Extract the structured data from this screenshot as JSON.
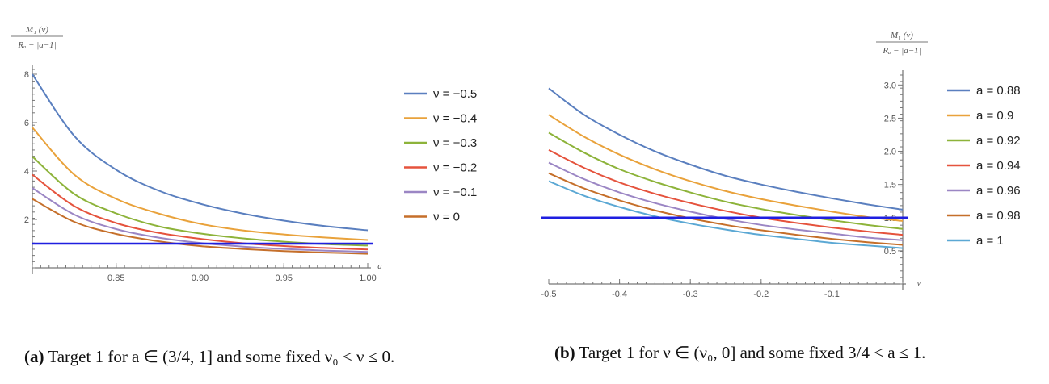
{
  "captions": {
    "a_label": "(a)",
    "a_text": " Target 1 for a ∈ (3/4, 1] and some fixed ν₀ < ν ≤ 0.",
    "b_label": "(b)",
    "b_text": " Target 1 for ν ∈ (ν₀, 0] and some fixed 3/4 < a ≤ 1."
  },
  "chart_data": [
    {
      "type": "line",
      "ylabel_num": "M₁ (ν)",
      "ylabel_den": "Rₐ − |a−1|",
      "xlabel": "a",
      "xlim": [
        0.8,
        1.0
      ],
      "ylim": [
        0,
        8.2
      ],
      "xticks": [
        0.85,
        0.9,
        0.95,
        1.0
      ],
      "xticklabels": [
        "0.85",
        "0.90",
        "0.95",
        "1.00"
      ],
      "yticks": [
        2,
        4,
        6,
        8
      ],
      "yticklabels": [
        "2",
        "4",
        "6",
        "8"
      ],
      "grid": false,
      "legend_placement": "right",
      "x": [
        0.8,
        0.825,
        0.85,
        0.875,
        0.9,
        0.925,
        0.95,
        0.975,
        1.0
      ],
      "series": [
        {
          "name": "ν = −0.5",
          "color": "#5a7fbf",
          "values": [
            8.0,
            5.45,
            4.05,
            3.2,
            2.65,
            2.25,
            1.95,
            1.72,
            1.55
          ]
        },
        {
          "name": "ν = −0.4",
          "color": "#e9a23b",
          "values": [
            5.8,
            3.85,
            2.85,
            2.25,
            1.82,
            1.55,
            1.38,
            1.25,
            1.15
          ]
        },
        {
          "name": "ν = −0.3",
          "color": "#8db33a",
          "values": [
            4.6,
            3.05,
            2.25,
            1.72,
            1.42,
            1.22,
            1.08,
            0.98,
            0.92
          ]
        },
        {
          "name": "ν = −0.2",
          "color": "#e5533d",
          "values": [
            3.85,
            2.55,
            1.85,
            1.45,
            1.2,
            1.02,
            0.9,
            0.82,
            0.76
          ]
        },
        {
          "name": "ν = −0.1",
          "color": "#9b86c4",
          "values": [
            3.3,
            2.2,
            1.6,
            1.25,
            1.03,
            0.88,
            0.78,
            0.71,
            0.66
          ]
        },
        {
          "name": "ν = 0",
          "color": "#c56f2a",
          "values": [
            2.85,
            1.9,
            1.4,
            1.1,
            0.9,
            0.78,
            0.69,
            0.63,
            0.58
          ]
        }
      ],
      "reference_line": {
        "y": 1.0,
        "color": "#1f1fe0"
      }
    },
    {
      "type": "line",
      "ylabel_num": "M₁ (ν)",
      "ylabel_den": "Rₐ − |a−1|",
      "xlabel": "ν",
      "xlim": [
        -0.5,
        0.0
      ],
      "ylim": [
        0.0,
        3.15
      ],
      "xticks": [
        -0.5,
        -0.4,
        -0.3,
        -0.2,
        -0.1
      ],
      "xticklabels": [
        "-0.5",
        "-0.4",
        "-0.3",
        "-0.2",
        "-0.1"
      ],
      "yticks": [
        0.5,
        1.0,
        1.5,
        2.0,
        2.5,
        3.0
      ],
      "yticklabels": [
        "0.5",
        "1.0",
        "1.5",
        "2.0",
        "2.5",
        "3.0"
      ],
      "grid": false,
      "legend_placement": "right",
      "x": [
        -0.5,
        -0.45,
        -0.4,
        -0.35,
        -0.3,
        -0.25,
        -0.2,
        -0.15,
        -0.1,
        -0.05,
        0.0
      ],
      "series": [
        {
          "name": "a = 0.88",
          "color": "#5a7fbf",
          "values": [
            2.95,
            2.55,
            2.25,
            2.0,
            1.8,
            1.63,
            1.5,
            1.39,
            1.29,
            1.2,
            1.12
          ]
        },
        {
          "name": "a = 0.9",
          "color": "#e9a23b",
          "values": [
            2.55,
            2.22,
            1.95,
            1.73,
            1.55,
            1.4,
            1.28,
            1.18,
            1.09,
            1.01,
            0.95
          ]
        },
        {
          "name": "a = 0.92",
          "color": "#8db33a",
          "values": [
            2.28,
            1.98,
            1.73,
            1.54,
            1.38,
            1.24,
            1.13,
            1.04,
            0.96,
            0.89,
            0.83
          ]
        },
        {
          "name": "a = 0.94",
          "color": "#e5533d",
          "values": [
            2.02,
            1.75,
            1.53,
            1.36,
            1.22,
            1.1,
            1.0,
            0.92,
            0.85,
            0.79,
            0.74
          ]
        },
        {
          "name": "a = 0.96",
          "color": "#9b86c4",
          "values": [
            1.83,
            1.58,
            1.38,
            1.22,
            1.09,
            0.98,
            0.89,
            0.82,
            0.76,
            0.7,
            0.66
          ]
        },
        {
          "name": "a = 0.98",
          "color": "#c56f2a",
          "values": [
            1.67,
            1.44,
            1.26,
            1.11,
            0.99,
            0.89,
            0.81,
            0.74,
            0.68,
            0.63,
            0.59
          ]
        },
        {
          "name": "a = 1",
          "color": "#5ba8d4",
          "values": [
            1.55,
            1.33,
            1.16,
            1.02,
            0.91,
            0.82,
            0.74,
            0.68,
            0.62,
            0.58,
            0.54
          ]
        }
      ],
      "reference_line": {
        "y": 1.0,
        "color": "#1f1fe0"
      }
    }
  ]
}
